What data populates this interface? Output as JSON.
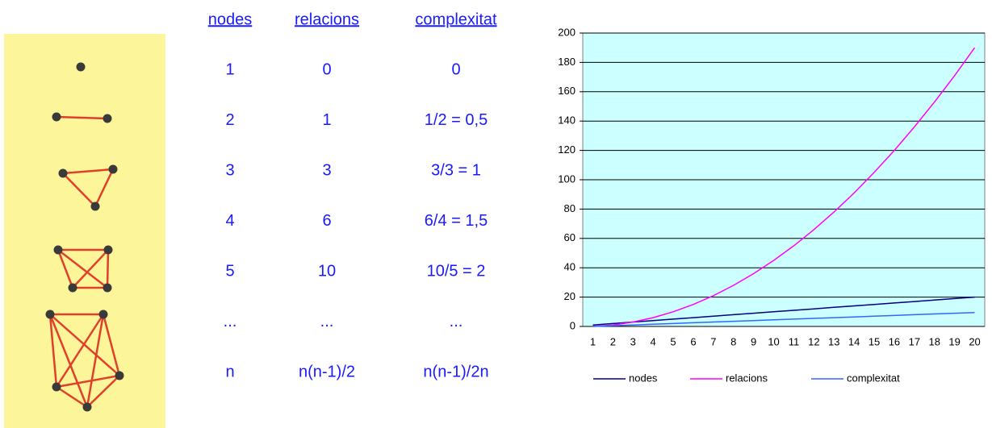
{
  "table": {
    "header": [
      "nodes",
      "relacions",
      "complexitat"
    ],
    "rows": [
      [
        "1",
        "0",
        "0"
      ],
      [
        "2",
        "1",
        "1/2 = 0,5"
      ],
      [
        "3",
        "3",
        "3/3 = 1"
      ],
      [
        "4",
        "6",
        "6/4 = 1,5"
      ],
      [
        "5",
        "10",
        "10/5 = 2"
      ],
      [
        "...",
        "...",
        "..."
      ],
      [
        "n",
        "n(n-1)/2",
        "n(n-1)/2n"
      ]
    ]
  },
  "chart_data": {
    "type": "line",
    "categories": [
      1,
      2,
      3,
      4,
      5,
      6,
      7,
      8,
      9,
      10,
      11,
      12,
      13,
      14,
      15,
      16,
      17,
      18,
      19,
      20
    ],
    "series": [
      {
        "name": "nodes",
        "color": "#000080",
        "values": [
          1,
          2,
          3,
          4,
          5,
          6,
          7,
          8,
          9,
          10,
          11,
          12,
          13,
          14,
          15,
          16,
          17,
          18,
          19,
          20
        ]
      },
      {
        "name": "relacions",
        "color": "#ff00ff",
        "values": [
          0,
          1,
          3,
          6,
          10,
          15,
          21,
          28,
          36,
          45,
          55,
          66,
          78,
          91,
          105,
          120,
          136,
          153,
          171,
          190
        ]
      },
      {
        "name": "complexitat",
        "color": "#3366ff",
        "values": [
          0,
          0.5,
          1,
          1.5,
          2,
          2.5,
          3,
          3.5,
          4,
          4.5,
          5,
          5.5,
          6,
          6.5,
          7,
          7.5,
          8,
          8.5,
          9,
          9.5
        ]
      }
    ],
    "ylim": [
      0,
      200
    ],
    "yticks": [
      0,
      20,
      40,
      60,
      80,
      100,
      120,
      140,
      160,
      180,
      200
    ],
    "grid": true,
    "legend": "bottom"
  }
}
